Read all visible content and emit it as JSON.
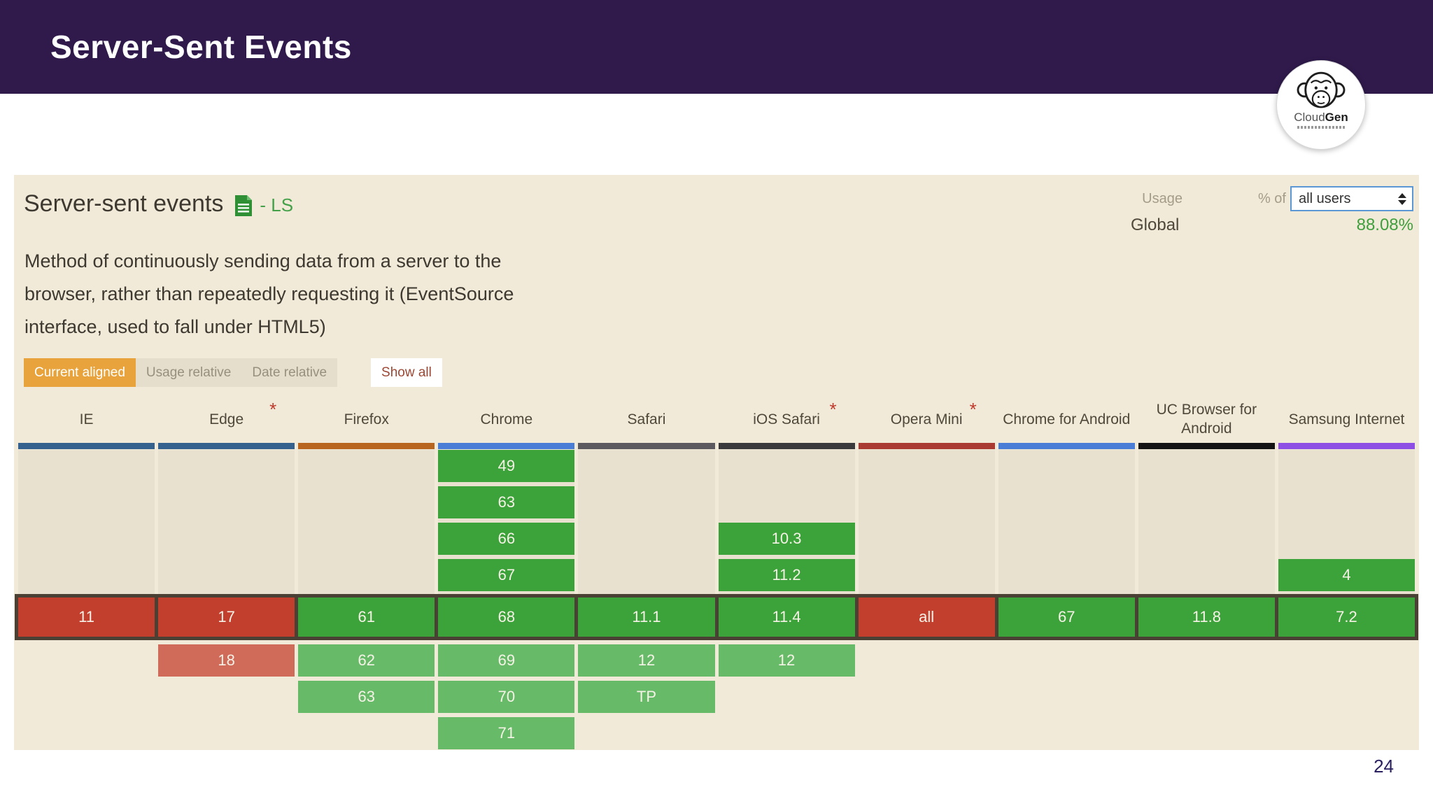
{
  "slide": {
    "title": "Server-Sent Events",
    "page_number": "24"
  },
  "logo": {
    "cloud": "Cloud",
    "gen": "Gen"
  },
  "panel": {
    "feature_title": "Server-sent events",
    "spec_status": "- LS",
    "description_lines": [
      "Method of continuously sending data from a server to the",
      "browser, rather than repeatedly requesting it (EventSource",
      "interface, used to fall under HTML5)"
    ],
    "usage": {
      "usage_label": "Usage",
      "percent_of": "% of",
      "select_value": "all users",
      "global_label": "Global",
      "global_value": "88.08%"
    },
    "buttons": {
      "current_aligned": "Current aligned",
      "usage_relative": "Usage relative",
      "date_relative": "Date relative",
      "show_all": "Show all"
    }
  },
  "colors": {
    "header_purple": "#2f1a4b",
    "panel_bg": "#f1ead9",
    "track_bg": "#e9e1d0",
    "current_border_brown": "#4a4134",
    "supported_green": "#3ca23a",
    "unsupported_red": "#c23f2e",
    "future_green": "#67bb68",
    "future_red": "#d06a59",
    "accent_orange": "#e8a33d",
    "accent_green": "#3f9f3d"
  },
  "table": {
    "browsers": [
      {
        "name": "IE",
        "note": false,
        "bar_color": "#35618e",
        "history": [
          null,
          null,
          null,
          null
        ],
        "current": {
          "label": "11",
          "status": "n"
        },
        "future": [
          null,
          null,
          null
        ]
      },
      {
        "name": "Edge",
        "note": true,
        "bar_color": "#35618e",
        "history": [
          null,
          null,
          null,
          null
        ],
        "current": {
          "label": "17",
          "status": "n"
        },
        "future": [
          {
            "label": "18",
            "status": "n"
          },
          null,
          null
        ]
      },
      {
        "name": "Firefox",
        "note": false,
        "bar_color": "#b8651f",
        "history": [
          null,
          null,
          null,
          null
        ],
        "current": {
          "label": "61",
          "status": "y"
        },
        "future": [
          {
            "label": "62",
            "status": "y"
          },
          {
            "label": "63",
            "status": "y"
          },
          null
        ]
      },
      {
        "name": "Chrome",
        "note": false,
        "bar_color": "#4a7ed6",
        "history": [
          {
            "label": "49",
            "status": "y"
          },
          {
            "label": "63",
            "status": "y"
          },
          {
            "label": "66",
            "status": "y"
          },
          {
            "label": "67",
            "status": "y"
          }
        ],
        "current": {
          "label": "68",
          "status": "y"
        },
        "future": [
          {
            "label": "69",
            "status": "y"
          },
          {
            "label": "70",
            "status": "y"
          },
          {
            "label": "71",
            "status": "y"
          }
        ]
      },
      {
        "name": "Safari",
        "note": false,
        "bar_color": "#5c5a5e",
        "history": [
          null,
          null,
          null,
          null
        ],
        "current": {
          "label": "11.1",
          "status": "y"
        },
        "future": [
          {
            "label": "12",
            "status": "y"
          },
          {
            "label": "TP",
            "status": "y"
          },
          null
        ]
      },
      {
        "name": "iOS Safari",
        "note": true,
        "bar_color": "#3a393b",
        "history": [
          null,
          null,
          {
            "label": "10.3",
            "status": "y"
          },
          {
            "label": "11.2",
            "status": "y"
          }
        ],
        "current": {
          "label": "11.4",
          "status": "y"
        },
        "future": [
          {
            "label": "12",
            "status": "y"
          },
          null,
          null
        ]
      },
      {
        "name": "Opera Mini",
        "note": true,
        "bar_color": "#a93b33",
        "history": [
          null,
          null,
          null,
          null
        ],
        "current": {
          "label": "all",
          "status": "n"
        },
        "future": [
          null,
          null,
          null
        ]
      },
      {
        "name": "Chrome for Android",
        "note": false,
        "bar_color": "#4a7ed6",
        "history": [
          null,
          null,
          null,
          null
        ],
        "current": {
          "label": "67",
          "status": "y"
        },
        "future": [
          null,
          null,
          null
        ]
      },
      {
        "name": "UC Browser for Android",
        "note": false,
        "bar_color": "#141414",
        "history": [
          null,
          null,
          null,
          null
        ],
        "current": {
          "label": "11.8",
          "status": "y"
        },
        "future": [
          null,
          null,
          null
        ]
      },
      {
        "name": "Samsung Internet",
        "note": false,
        "bar_color": "#8d4fe4",
        "history": [
          null,
          null,
          null,
          {
            "label": "4",
            "status": "y"
          }
        ],
        "current": {
          "label": "7.2",
          "status": "y"
        },
        "future": [
          null,
          null,
          null
        ]
      }
    ]
  }
}
